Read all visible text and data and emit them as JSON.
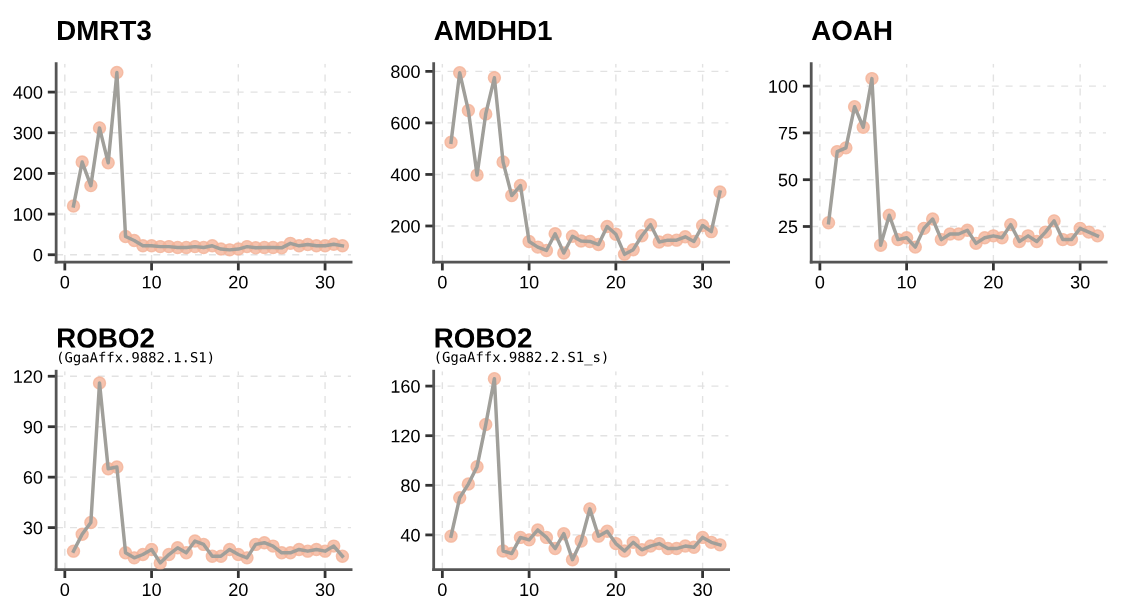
{
  "chart_data": [
    {
      "type": "line",
      "title": "DMRT3",
      "x": [
        1,
        2,
        3,
        4,
        5,
        6,
        7,
        8,
        9,
        10,
        11,
        12,
        13,
        14,
        15,
        16,
        17,
        18,
        19,
        20,
        21,
        22,
        23,
        24,
        25,
        26,
        27,
        28,
        29,
        30,
        31,
        32
      ],
      "series": [
        {
          "color": "#f4b49a",
          "values": [
            120,
            228,
            170,
            312,
            226,
            448,
            45,
            35,
            22,
            22,
            20,
            20,
            18,
            18,
            20,
            18,
            22,
            14,
            12,
            14,
            20,
            17,
            18,
            18,
            17,
            28,
            22,
            25,
            22,
            22,
            26,
            22
          ]
        }
      ],
      "xlim": [
        -1,
        33
      ],
      "xticks": [
        0,
        10,
        20,
        30
      ],
      "ylim": [
        -18,
        470
      ],
      "yticks": [
        0,
        100,
        200,
        300,
        400
      ],
      "grid": true,
      "marker": "circle",
      "line_style": "solid",
      "legend": false
    },
    {
      "type": "line",
      "title": "AMDHD1",
      "x": [
        1,
        2,
        3,
        4,
        5,
        6,
        7,
        8,
        9,
        10,
        11,
        12,
        13,
        14,
        15,
        16,
        17,
        18,
        19,
        20,
        21,
        22,
        23,
        24,
        25,
        26,
        27,
        28,
        29,
        30,
        31,
        32
      ],
      "series": [
        {
          "color": "#f4b49a",
          "values": [
            525,
            795,
            648,
            398,
            635,
            775,
            448,
            318,
            357,
            140,
            118,
            105,
            170,
            95,
            160,
            142,
            140,
            128,
            198,
            168,
            90,
            108,
            162,
            205,
            138,
            145,
            145,
            158,
            140,
            202,
            178,
            332
          ]
        }
      ],
      "xlim": [
        -1,
        33
      ],
      "xticks": [
        0,
        10,
        20,
        30
      ],
      "ylim": [
        60,
        830
      ],
      "yticks": [
        200,
        400,
        600,
        800
      ],
      "grid": true,
      "marker": "circle",
      "line_style": "solid",
      "legend": false
    },
    {
      "type": "line",
      "title": "AOAH",
      "x": [
        1,
        2,
        3,
        4,
        5,
        6,
        7,
        8,
        9,
        10,
        11,
        12,
        13,
        14,
        15,
        16,
        17,
        18,
        19,
        20,
        21,
        22,
        23,
        24,
        25,
        26,
        27,
        28,
        29,
        30,
        31,
        32
      ],
      "series": [
        {
          "color": "#f4b49a",
          "values": [
            27,
            65,
            67,
            89,
            78,
            104,
            15,
            31,
            18,
            19,
            14,
            24,
            29,
            18,
            21,
            21,
            23,
            16,
            19,
            20,
            19,
            26,
            17,
            20,
            17,
            22,
            28,
            18,
            18,
            24,
            22,
            20
          ]
        }
      ],
      "xlim": [
        -1,
        33
      ],
      "xticks": [
        0,
        10,
        20,
        30
      ],
      "ylim": [
        6,
        112
      ],
      "yticks": [
        25,
        50,
        75,
        100
      ],
      "grid": true,
      "marker": "circle",
      "line_style": "solid",
      "legend": false
    },
    {
      "type": "line",
      "title": "ROBO2",
      "subtitle": "(GgaAffx.9882.1.S1)",
      "x": [
        1,
        2,
        3,
        4,
        5,
        6,
        7,
        8,
        9,
        10,
        11,
        12,
        13,
        14,
        15,
        16,
        17,
        18,
        19,
        20,
        21,
        22,
        23,
        24,
        25,
        26,
        27,
        28,
        29,
        30,
        31,
        32
      ],
      "series": [
        {
          "color": "#f4b49a",
          "values": [
            16,
            26,
            33,
            116,
            65,
            66,
            15,
            12,
            14,
            17,
            9,
            14,
            18,
            15,
            22,
            20,
            13,
            13,
            17,
            14,
            12,
            20,
            21,
            19,
            15,
            15,
            17,
            16,
            17,
            16,
            19,
            13
          ]
        }
      ],
      "xlim": [
        -1,
        33
      ],
      "xticks": [
        0,
        10,
        20,
        30
      ],
      "ylim": [
        5,
        123
      ],
      "yticks": [
        30,
        60,
        90,
        120
      ],
      "grid": true,
      "marker": "circle",
      "line_style": "solid",
      "legend": false
    },
    {
      "type": "line",
      "title": "ROBO2",
      "subtitle": "(GgaAffx.9882.2.S1_s)",
      "x": [
        1,
        2,
        3,
        4,
        5,
        6,
        7,
        8,
        9,
        10,
        11,
        12,
        13,
        14,
        15,
        16,
        17,
        18,
        19,
        20,
        21,
        22,
        23,
        24,
        25,
        26,
        27,
        28,
        29,
        30,
        31,
        32
      ],
      "series": [
        {
          "color": "#f4b49a",
          "values": [
            39,
            70,
            81,
            95,
            129,
            166,
            27,
            25,
            38,
            36,
            44,
            38,
            29,
            41,
            20,
            35,
            61,
            39,
            43,
            33,
            27,
            34,
            28,
            31,
            33,
            29,
            29,
            31,
            30,
            38,
            34,
            32
          ]
        }
      ],
      "xlim": [
        -1,
        33
      ],
      "xticks": [
        0,
        10,
        20,
        30
      ],
      "ylim": [
        12,
        172
      ],
      "yticks": [
        40,
        80,
        120,
        160
      ],
      "grid": true,
      "marker": "circle",
      "line_style": "solid",
      "legend": false
    }
  ]
}
